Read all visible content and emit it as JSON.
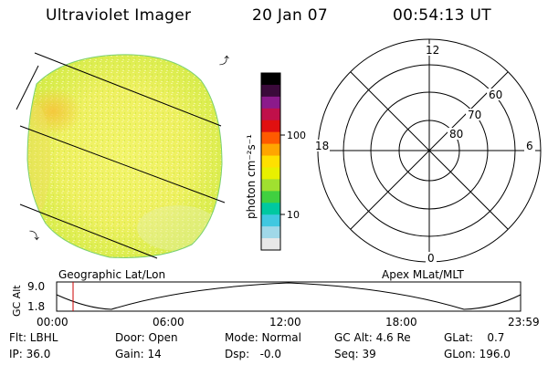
{
  "header": {
    "title": "Ultraviolet Imager",
    "date": "20 Jan 07",
    "time": "00:54:13 UT"
  },
  "colorbar": {
    "unit": "photon cm⁻²s⁻¹",
    "ticks": [
      "100",
      "10"
    ],
    "colors": [
      "#000000",
      "#3a0a3a",
      "#8b1a8b",
      "#c0104a",
      "#e01010",
      "#ff5a00",
      "#ffa500",
      "#ffe000",
      "#e8f000",
      "#a0e030",
      "#40d040",
      "#00c8a0",
      "#40c8e0",
      "#a0d8e8",
      "#e8e8e8"
    ]
  },
  "polar": {
    "mlt_top": "12",
    "mlt_left": "18",
    "mlt_right": "6",
    "mlt_bottom": "0",
    "lat_labels": [
      "60",
      "70",
      "80"
    ]
  },
  "timeline": {
    "ylabel": "GC Alt",
    "yticks": [
      "9.0",
      "1.8"
    ],
    "left_title": "Geographic Lat/Lon",
    "right_title": "Apex  MLat/MLT",
    "xticks": [
      "00:00",
      "06:00",
      "12:00",
      "18:00",
      "23:59"
    ],
    "marker_color": "#cc0000"
  },
  "status": {
    "flt": "Flt: LBHL",
    "ip": "IP: 36.0",
    "door": "Door: Open",
    "gain": "Gain: 14",
    "mode": "Mode: Normal",
    "dsp": "Dsp:   -0.0",
    "gcalt": "GC Alt: 4.6 Re",
    "seq": "Seq: 39",
    "glat": "GLat:    0.7",
    "glon": "GLon: 196.0"
  }
}
